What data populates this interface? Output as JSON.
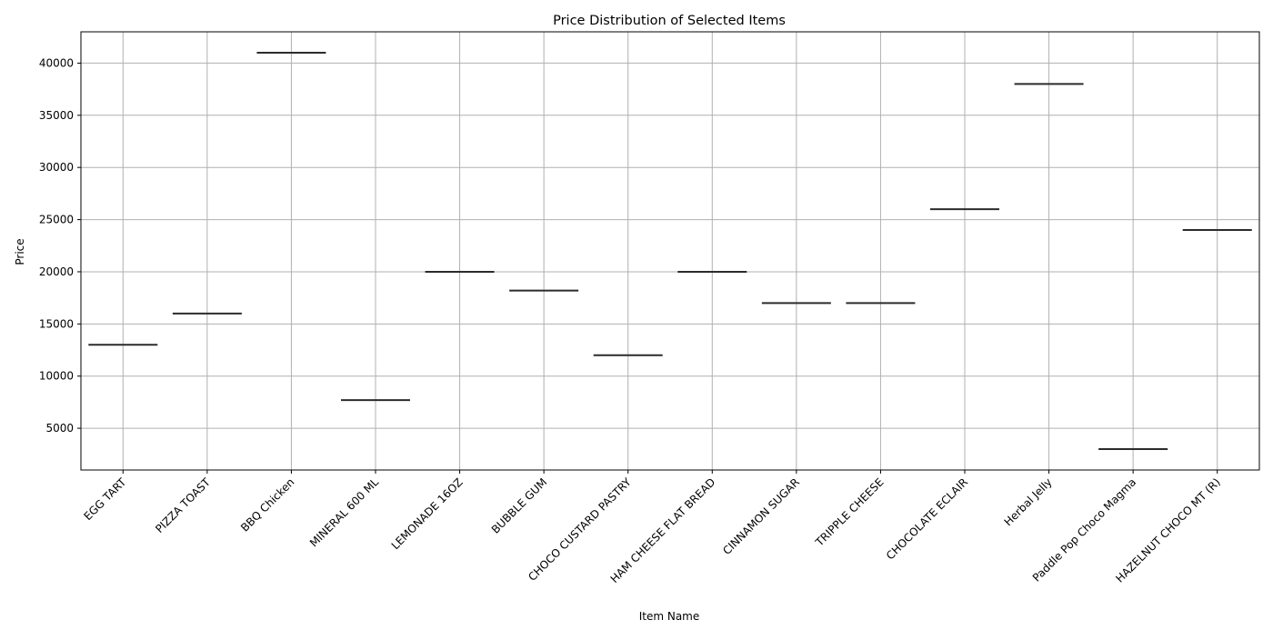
{
  "chart_data": {
    "type": "box",
    "title": "Price Distribution of Selected Items",
    "xlabel": "Item Name",
    "ylabel": "Price",
    "categories": [
      "EGG TART",
      "PIZZA TOAST",
      "BBQ Chicken",
      "MINERAL 600 ML",
      "LEMONADE 16OZ",
      "BUBBLE GUM",
      "CHOCO CUSTARD PASTRY",
      "HAM CHEESE FLAT BREAD",
      "CINNAMON SUGAR",
      "TRIPPLE CHEESE",
      "CHOCOLATE ECLAIR",
      "Herbal Jelly",
      "Paddle Pop Choco Magma",
      "HAZELNUT CHOCO MT (R)"
    ],
    "values": [
      13000,
      16000,
      41000,
      7700,
      20000,
      18200,
      12000,
      20000,
      17000,
      17000,
      26000,
      38000,
      3000,
      24000
    ],
    "ylim": [
      1000,
      43000
    ],
    "yticks": [
      5000,
      10000,
      15000,
      20000,
      25000,
      30000,
      35000,
      40000
    ],
    "grid": true,
    "colors": {
      "median": "#2b2b2b",
      "grid": "#b0b0b0",
      "axis": "#000000"
    }
  }
}
